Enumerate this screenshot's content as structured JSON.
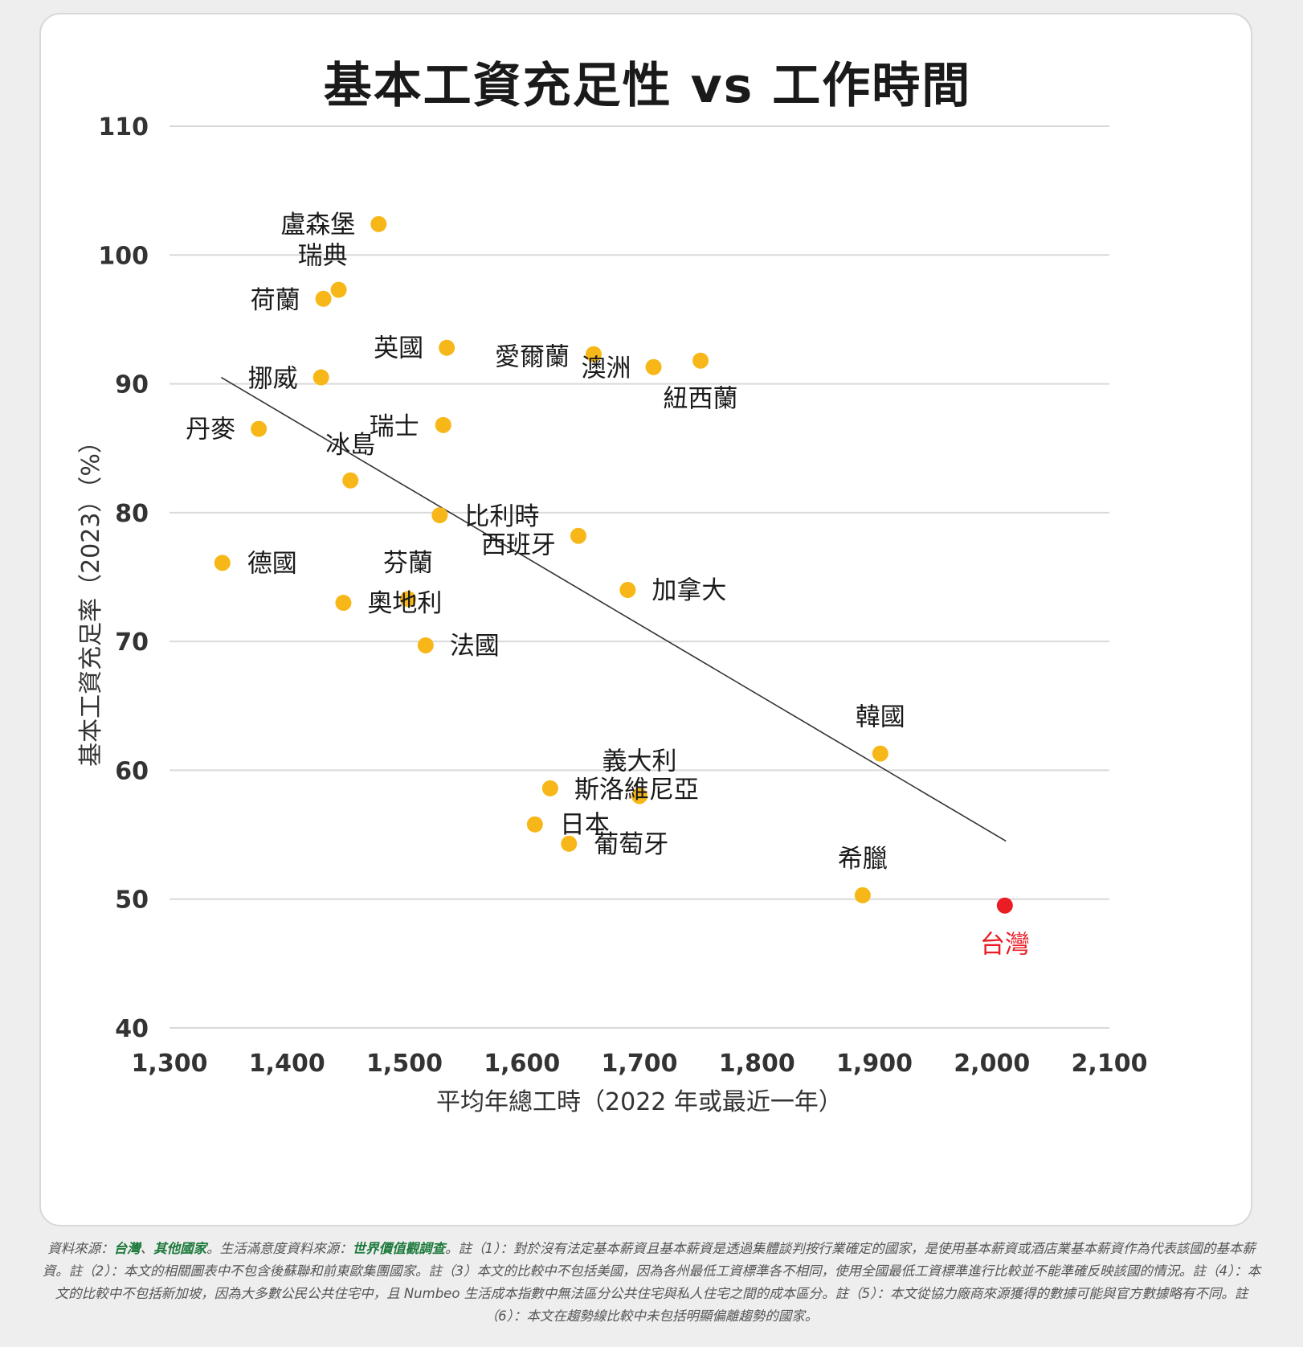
{
  "chart_data": {
    "type": "scatter",
    "title": "基本工資充足性 vs 工作時間",
    "xlabel": "平均年總工時（2022 年或最近一年）",
    "ylabel": "基本工資充足率（2023）（%）",
    "xlim": [
      1300,
      2100
    ],
    "ylim": [
      40,
      110
    ],
    "x_ticks": [
      "1,300",
      "1,400",
      "1,500",
      "1,600",
      "1,700",
      "1,800",
      "1,900",
      "2,000",
      "2,100"
    ],
    "y_ticks": [
      "40",
      "50",
      "60",
      "70",
      "80",
      "90",
      "100",
      "110"
    ],
    "grid": "horizontal",
    "trendline": {
      "x": [
        1344,
        2012
      ],
      "y": [
        90.5,
        54.5
      ]
    },
    "colors": {
      "point": "#f7b718",
      "highlight": "#ea1c24",
      "trend": "#333333",
      "grid": "#d9d9d9"
    },
    "points": [
      {
        "name": "盧森堡",
        "x": 1478,
        "y": 102.4
      },
      {
        "name": "瑞典",
        "x": 1444,
        "y": 97.3
      },
      {
        "name": "荷蘭",
        "x": 1431,
        "y": 96.6
      },
      {
        "name": "英國",
        "x": 1536,
        "y": 92.8
      },
      {
        "name": "愛爾蘭",
        "x": 1661,
        "y": 92.3
      },
      {
        "name": "澳洲",
        "x": 1712,
        "y": 91.3
      },
      {
        "name": "紐西蘭",
        "x": 1752,
        "y": 91.8
      },
      {
        "name": "挪威",
        "x": 1429,
        "y": 90.5
      },
      {
        "name": "丹麥",
        "x": 1376,
        "y": 86.5
      },
      {
        "name": "瑞士",
        "x": 1533,
        "y": 86.8
      },
      {
        "name": "冰島",
        "x": 1454,
        "y": 82.5
      },
      {
        "name": "比利時",
        "x": 1530,
        "y": 79.8
      },
      {
        "name": "西班牙",
        "x": 1648,
        "y": 78.2
      },
      {
        "name": "德國",
        "x": 1345,
        "y": 76.1
      },
      {
        "name": "加拿大",
        "x": 1690,
        "y": 74.0
      },
      {
        "name": "芬蘭",
        "x": 1503,
        "y": 73.3
      },
      {
        "name": "奧地利",
        "x": 1448,
        "y": 73.0
      },
      {
        "name": "法國",
        "x": 1518,
        "y": 69.7
      },
      {
        "name": "韓國",
        "x": 1905,
        "y": 61.3
      },
      {
        "name": "義大利",
        "x": 1700,
        "y": 58.0
      },
      {
        "name": "斯洛維尼亞",
        "x": 1624,
        "y": 58.6
      },
      {
        "name": "日本",
        "x": 1611,
        "y": 55.8
      },
      {
        "name": "葡萄牙",
        "x": 1640,
        "y": 54.3
      },
      {
        "name": "希臘",
        "x": 1890,
        "y": 50.3
      },
      {
        "name": "台灣",
        "x": 2011,
        "y": 49.5,
        "highlight": true
      }
    ]
  },
  "footnote": {
    "prefix": "資料來源：",
    "source1": "台灣",
    "sep": "、",
    "source2": "其他國家",
    "mid": "。生活滿意度資料來源：",
    "source3": "世界價值觀調查",
    "rest": "。註（1）：對於沒有法定基本薪資且基本薪資是透過集體談判按行業確定的國家，是使用基本薪資或酒店業基本薪資作為代表該國的基本薪資。註（2）：本文的相關圖表中不包含後蘇聯和前東歐集團國家。註（3）本文的比較中不包括美國，因為各州最低工資標準各不相同，使用全國最低工資標準進行比較並不能準確反映該國的情況。註（4）：本文的比較中不包括新加坡，因為大多數公民公共住宅中，且 Numbeo 生活成本指數中無法區分公共住宅與私人住宅之間的成本區分。註（5）：本文從協力廠商來源獲得的數據可能與官方數據略有不同。註（6）：本文在趨勢線比較中未包括明顯偏離趨勢的國家。"
  }
}
